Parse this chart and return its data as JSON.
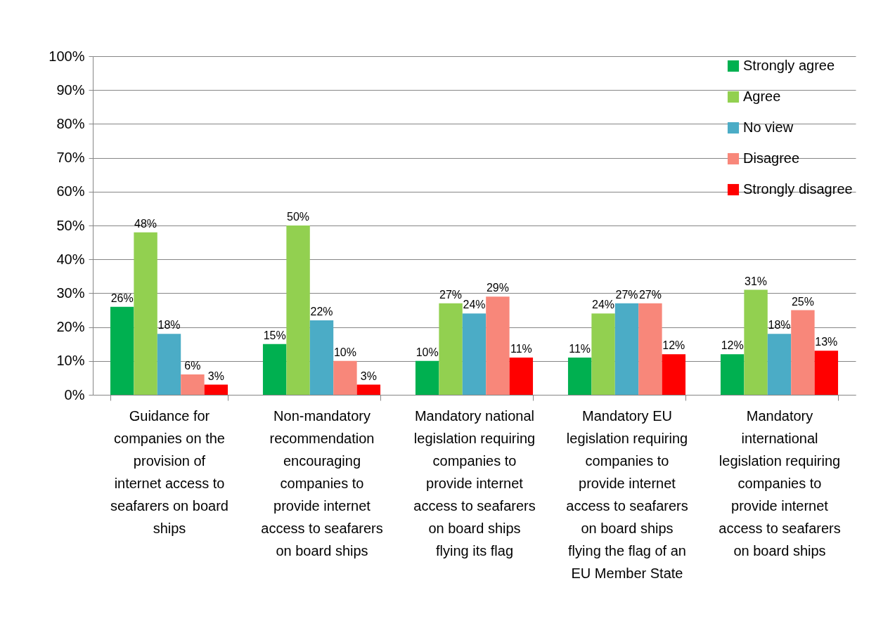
{
  "chart_data": {
    "type": "bar",
    "categories": [
      "Guidance for companies on the provision of internet access to seafarers on board ships",
      "Non-mandatory recommendation encouraging companies to provide internet access to seafarers on board ships",
      "Mandatory national legislation requiring companies to provide internet access to seafarers on board ships flying its flag",
      "Mandatory EU legislation requiring companies to provide internet access to seafarers on board ships flying the flag of an EU Member State",
      "Mandatory international legislation requiring companies to provide internet access to seafarers on board ships"
    ],
    "series": [
      {
        "name": "Strongly agree",
        "color": "#00b050",
        "values": [
          26,
          15,
          10,
          11,
          12
        ],
        "value_labels": [
          "26%",
          "15%",
          "10%",
          "11%",
          "12%"
        ]
      },
      {
        "name": "Agree",
        "color": "#92d050",
        "values": [
          48,
          50,
          27,
          24,
          31
        ],
        "value_labels": [
          "48%",
          "50%",
          "27%",
          "24%",
          "31%"
        ]
      },
      {
        "name": "No view",
        "color": "#4bacc6",
        "values": [
          18,
          22,
          24,
          27,
          18
        ],
        "value_labels": [
          "18%",
          "22%",
          "24%",
          "27%",
          "18%"
        ]
      },
      {
        "name": "Disagree",
        "color": "#f8877a",
        "values": [
          6,
          10,
          29,
          27,
          25
        ],
        "value_labels": [
          "6%",
          "10%",
          "29%",
          "27%",
          "25%"
        ]
      },
      {
        "name": "Strongly disagree",
        "color": "#ff0000",
        "values": [
          3,
          3,
          11,
          12,
          13
        ],
        "value_labels": [
          "3%",
          "3%",
          "11%",
          "12%",
          "13%"
        ]
      }
    ],
    "ylim": [
      0,
      100
    ],
    "yticks": [
      {
        "value": 0,
        "label": "0%"
      },
      {
        "value": 10,
        "label": "10%"
      },
      {
        "value": 20,
        "label": "20%"
      },
      {
        "value": 30,
        "label": "30%"
      },
      {
        "value": 40,
        "label": "40%"
      },
      {
        "value": 50,
        "label": "50%"
      },
      {
        "value": 60,
        "label": "60%"
      },
      {
        "value": 70,
        "label": "70%"
      },
      {
        "value": 80,
        "label": "80%"
      },
      {
        "value": 90,
        "label": "90%"
      },
      {
        "value": 100,
        "label": "100%"
      }
    ],
    "grid": "y",
    "legend": "top right"
  }
}
